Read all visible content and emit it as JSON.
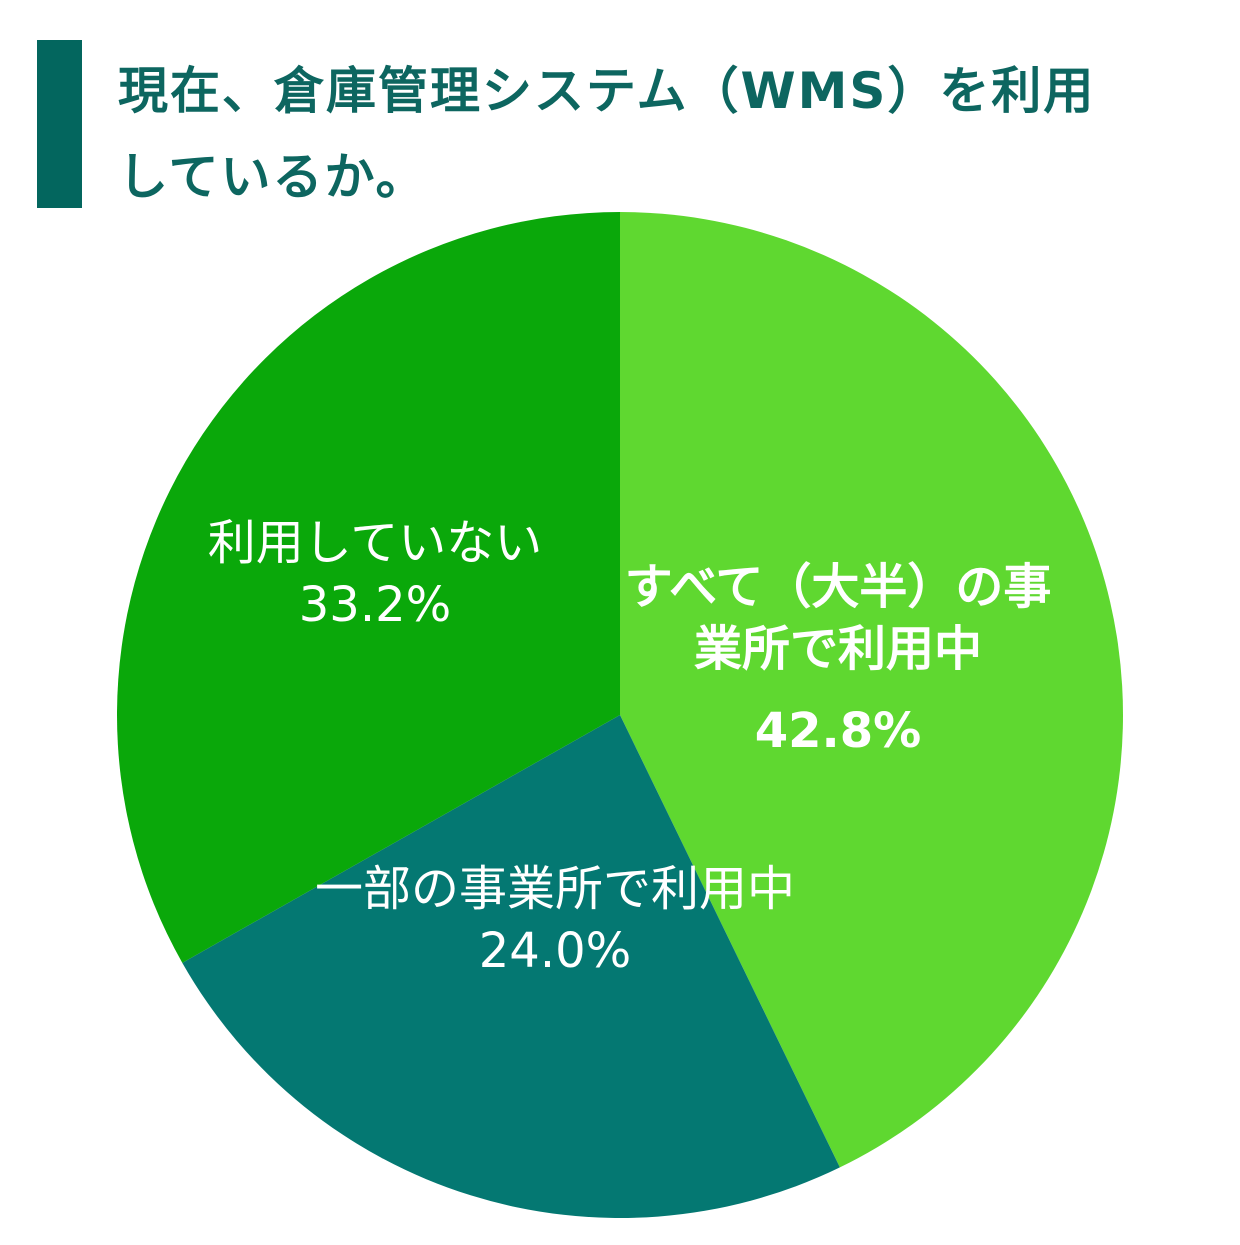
{
  "chart_data": {
    "type": "pie",
    "title": "現在、倉庫管理システム（WMS）を利用しているか。",
    "categories": [
      "すべて（大半）の事業所で利用中",
      "一部の事業所で利用中",
      "利用していない"
    ],
    "values": [
      42.8,
      24.0,
      33.2
    ],
    "value_labels": [
      "42.8%",
      "24.0%",
      "33.2%"
    ],
    "colors": [
      "#5fd830",
      "#047872",
      "#0aa80a"
    ]
  }
}
